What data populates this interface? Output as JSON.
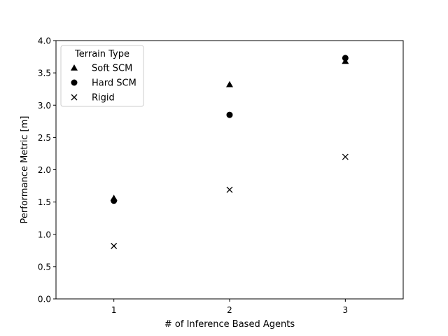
{
  "chart_data": {
    "type": "scatter",
    "title": "",
    "xlabel": "# of Inference Based Agents",
    "ylabel": "Performance Metric [m]",
    "xlim": [
      0.5,
      3.5
    ],
    "ylim": [
      0.0,
      4.0
    ],
    "xticks": [
      1,
      2,
      3
    ],
    "xtick_labels": [
      "1",
      "2",
      "3"
    ],
    "yticks": [
      0.0,
      0.5,
      1.0,
      1.5,
      2.0,
      2.5,
      3.0,
      3.5,
      4.0
    ],
    "ytick_labels": [
      "0.0",
      "0.5",
      "1.0",
      "1.5",
      "2.0",
      "2.5",
      "3.0",
      "3.5",
      "4.0"
    ],
    "grid": false,
    "legend": {
      "title": "Terrain Type",
      "placement": "upper-left"
    },
    "series": [
      {
        "name": "Soft SCM",
        "marker": "triangle",
        "color": "#000000",
        "x": [
          1,
          2,
          3
        ],
        "y": [
          1.56,
          3.32,
          3.68
        ]
      },
      {
        "name": "Hard SCM",
        "marker": "circle",
        "color": "#000000",
        "x": [
          1,
          2,
          3
        ],
        "y": [
          1.52,
          2.85,
          3.73
        ]
      },
      {
        "name": "Rigid",
        "marker": "x",
        "color": "#000000",
        "x": [
          1,
          2,
          3
        ],
        "y": [
          0.82,
          1.69,
          2.2
        ]
      }
    ]
  }
}
